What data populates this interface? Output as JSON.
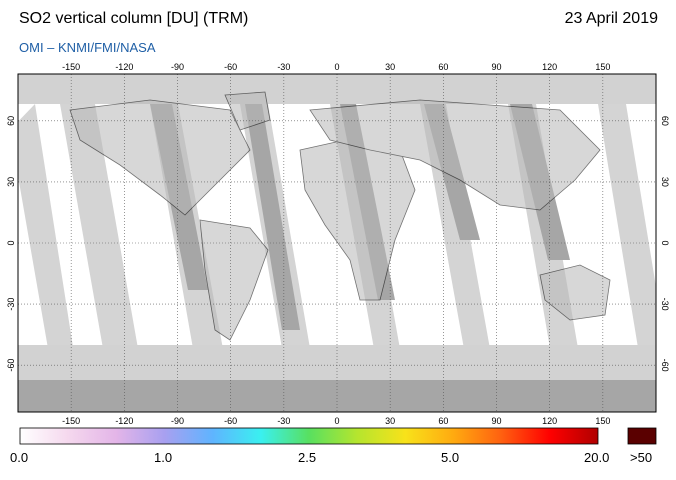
{
  "header": {
    "title": "SO2 vertical column [DU] (TRM)",
    "date": "23 April 2019",
    "credit": "OMI  –  KNMI/FMI/NASA"
  },
  "map": {
    "lon_ticks": [
      "-150",
      "-120",
      "-90",
      "-60",
      "-30",
      "0",
      "30",
      "60",
      "90",
      "120",
      "150"
    ],
    "lat_ticks": [
      "60",
      "30",
      "0",
      "-30",
      "-60"
    ],
    "colors": {
      "no_data": "#a6a6a6",
      "partial": "#d2d2d2",
      "ocean": "#ffffff"
    }
  },
  "colorbar": {
    "labels": [
      "0.0",
      "1.0",
      "2.5",
      "5.0",
      "20.0"
    ],
    "overflow_label": ">50",
    "overflow_color": "#5a0000",
    "stops": [
      "#ffffff",
      "#f5d8ee",
      "#e3b5e8",
      "#a8a0f0",
      "#5fb4ff",
      "#3af0f0",
      "#58e060",
      "#b5e52e",
      "#f8e21a",
      "#ffaa10",
      "#ff6010",
      "#ff0000",
      "#b00000"
    ]
  }
}
